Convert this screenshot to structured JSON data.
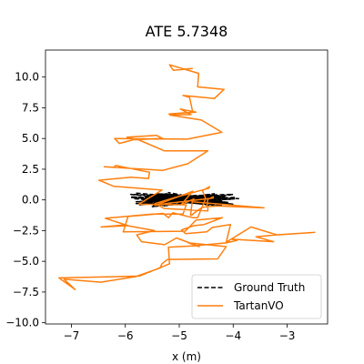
{
  "chart_data": {
    "type": "line",
    "title": "ATE 5.7348",
    "xlabel": "x (m)",
    "ylabel": "",
    "xlim": [
      -7.48,
      -2.25
    ],
    "ylim": [
      -10.1,
      12.2
    ],
    "xticks": [
      -7,
      -6,
      -5,
      -4,
      -3
    ],
    "xtick_labels": [
      "−7",
      "−6",
      "−5",
      "−4",
      "−3"
    ],
    "yticks": [
      -10.0,
      -7.5,
      -5.0,
      -2.5,
      0.0,
      2.5,
      5.0,
      7.5,
      10.0
    ],
    "ytick_labels": [
      "−10.0",
      "−7.5",
      "−5.0",
      "−2.5",
      "0.0",
      "2.5",
      "5.0",
      "7.5",
      "10.0"
    ],
    "grid": false,
    "legend_position": "lower-right",
    "series": [
      {
        "name": "Ground Truth",
        "style": "dashed",
        "color": "#000000",
        "x": [
          -5.8,
          -4.2,
          -5.6,
          -4.1,
          -5.9,
          -4.0,
          -5.5,
          -4.3,
          -5.7,
          -4.1,
          -5.4,
          -3.9,
          -5.8,
          -4.4,
          -5.3,
          -4.2,
          -5.9,
          -4.0,
          -5.6,
          -4.5,
          -5.2,
          -4.1,
          -5.7,
          -4.3,
          -5.5,
          -3.95,
          -5.85,
          -4.2,
          -5.35,
          -4.05,
          -5.65,
          -4.35,
          -5.1,
          -4.15,
          -5.75,
          -4.25,
          -5.45,
          -4.0,
          -5.9,
          -4.4,
          -5.25,
          -4.1,
          -5.6,
          -4.3,
          -5.4,
          -4.05,
          -5.8,
          -4.2,
          -5.0,
          -4.6
        ],
        "y": [
          0.55,
          -0.05,
          0.4,
          -0.35,
          0.2,
          0.45,
          -0.45,
          0.3,
          0.05,
          -0.2,
          0.5,
          0.1,
          -0.3,
          0.35,
          -0.5,
          0.15,
          0.45,
          -0.4,
          0.25,
          -0.15,
          0.6,
          -0.3,
          0.0,
          0.4,
          -0.55,
          0.2,
          0.1,
          -0.45,
          0.35,
          0.05,
          -0.25,
          0.5,
          -0.1,
          0.3,
          -0.4,
          0.15,
          0.45,
          -0.35,
          0.25,
          -0.05,
          0.5,
          -0.2,
          0.35,
          -0.5,
          0.1,
          0.4,
          -0.15,
          0.3,
          -0.3,
          0.2
        ]
      },
      {
        "name": "TartanVO",
        "style": "solid",
        "color": "#ff7f0e",
        "x": [
          -4.72,
          -4.97,
          -4.75,
          -5.45,
          -5.17,
          -5.06,
          -4.37,
          -4.37,
          -4.47,
          -4.49,
          -4.28,
          -3.43,
          -4.76,
          -4.79,
          -4.77,
          -4.69,
          -4.57,
          -4.47,
          -4.47,
          -5.28,
          -5.45,
          -5.08,
          -4.45,
          -4.44,
          -4.57,
          -4.51,
          -4.66,
          -4.75,
          -5.12,
          -5.2,
          -5.3,
          -5.95,
          -6.04,
          -4.89,
          -4.69,
          -4.2,
          -4.54,
          -4.73,
          -4.96,
          -4.88,
          -4.49,
          -4.39,
          -4.05,
          -4.13,
          -3.67,
          -3.19,
          -2.49,
          -3.21,
          -3.58,
          -3.25,
          -4.02,
          -3.93,
          -4.13,
          -4.75,
          -5.2,
          -5.18,
          -5.74,
          -7.23,
          -6.93,
          -7.14,
          -6.46,
          -5.81,
          -5.36,
          -5.32,
          -5.22,
          -4.29,
          -4.13,
          -4.83,
          -4.63,
          -5.05,
          -5.27,
          -5.7,
          -5.79,
          -5.46,
          -6.03,
          -6.45,
          -5.95,
          -6.37,
          -5.5,
          -4.93,
          -4.87,
          -5.75,
          -5.32,
          -6.21,
          -6.49,
          -5.9,
          -5.57,
          -5.55,
          -6.18,
          -6.22,
          -6.39,
          -5.31,
          -4.84,
          -4.47,
          -5.28,
          -5.76,
          -5.97,
          -5.42,
          -5.31,
          -5.85,
          -6.11,
          -6.2,
          -4.85,
          -4.21,
          -4.59,
          -5.17,
          -4.78,
          -4.98,
          -4.69,
          -5.19,
          -4.75,
          -4.81,
          -4.93,
          -4.35,
          -4.17,
          -4.66,
          -4.64,
          -5.18,
          -5.11,
          -4.75
        ],
        "y": [
          0.1,
          -0.4,
          0.7,
          -0.45,
          -0.25,
          -0.2,
          0.15,
          0.25,
          0.05,
          -0.55,
          -0.5,
          -0.65,
          -0.15,
          -1.25,
          -1.25,
          -0.95,
          -0.6,
          -0.55,
          -0.9,
          -0.7,
          -0.3,
          0.2,
          0.95,
          1.08,
          0.75,
          0.1,
          -1.45,
          -1.45,
          -1.05,
          -1.45,
          -1.1,
          -1.35,
          -2.6,
          -2.55,
          -1.65,
          -1.45,
          -2.0,
          -2.1,
          -2.45,
          -2.75,
          -2.6,
          -2.25,
          -2.0,
          -3.45,
          -2.2,
          -2.85,
          -2.65,
          -2.85,
          -3.0,
          -3.4,
          -3.2,
          -3.3,
          -3.5,
          -3.75,
          -3.85,
          -5.2,
          -6.2,
          -6.35,
          -7.3,
          -6.45,
          -6.7,
          -6.25,
          -5.55,
          -5.2,
          -4.85,
          -4.8,
          -3.8,
          -3.5,
          -3.8,
          -3.1,
          -3.65,
          -3.4,
          -2.85,
          -2.5,
          -2.05,
          -2.2,
          -2.1,
          -1.5,
          -1.15,
          -1.15,
          -0.4,
          -0.35,
          0.8,
          1.1,
          1.6,
          1.85,
          1.75,
          2.25,
          2.8,
          2.65,
          2.7,
          2.4,
          2.95,
          4.0,
          4.0,
          4.9,
          5.1,
          5.25,
          5.0,
          4.9,
          4.6,
          5.0,
          4.95,
          5.5,
          6.5,
          6.9,
          6.95,
          7.4,
          7.15,
          7.0,
          7.15,
          8.35,
          8.5,
          8.25,
          9.0,
          9.2,
          10.3,
          11.0,
          10.55,
          10.7
        ]
      }
    ]
  }
}
